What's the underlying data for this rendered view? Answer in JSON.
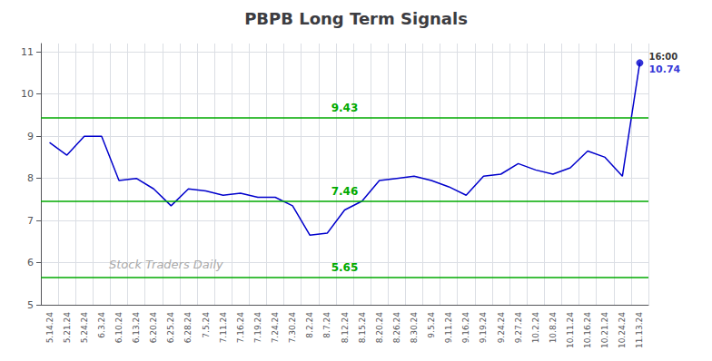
{
  "chart_data": {
    "type": "line",
    "title": "PBPB Long Term Signals",
    "categories": [
      "5.14.24",
      "5.21.24",
      "5.24.24",
      "6.3.24",
      "6.10.24",
      "6.13.24",
      "6.20.24",
      "6.25.24",
      "6.28.24",
      "7.5.24",
      "7.11.24",
      "7.16.24",
      "7.19.24",
      "7.24.24",
      "7.30.24",
      "8.2.24",
      "8.7.24",
      "8.12.24",
      "8.15.24",
      "8.20.24",
      "8.26.24",
      "8.30.24",
      "9.5.24",
      "9.11.24",
      "9.16.24",
      "9.19.24",
      "9.24.24",
      "9.27.24",
      "10.2.24",
      "10.8.24",
      "10.11.24",
      "10.16.24",
      "10.21.24",
      "10.24.24",
      "11.13.24"
    ],
    "values": [
      8.85,
      8.55,
      9.0,
      9.0,
      7.95,
      8.0,
      7.75,
      7.35,
      7.75,
      7.7,
      7.6,
      7.65,
      7.55,
      7.55,
      7.35,
      6.65,
      6.7,
      7.25,
      7.46,
      7.95,
      8.0,
      8.05,
      7.95,
      7.8,
      7.6,
      8.05,
      8.1,
      8.35,
      8.2,
      8.1,
      8.25,
      8.65,
      8.5,
      8.05,
      10.74
    ],
    "color": "#0000cc",
    "hlines": [
      {
        "y": 9.43,
        "label": "9.43",
        "color": "#00aa00"
      },
      {
        "y": 7.46,
        "label": "7.46",
        "color": "#00aa00"
      },
      {
        "y": 5.65,
        "label": "5.65",
        "color": "#00aa00"
      }
    ],
    "annotations": [
      {
        "category": "11.13.24",
        "value": 10.74,
        "lines": [
          "16:00",
          "10.74"
        ]
      }
    ],
    "watermark": "Stock Traders Daily",
    "ylim": [
      5.0,
      11.2
    ],
    "yticks": [
      5,
      6,
      7,
      8,
      9,
      10,
      11
    ],
    "grid": true
  }
}
